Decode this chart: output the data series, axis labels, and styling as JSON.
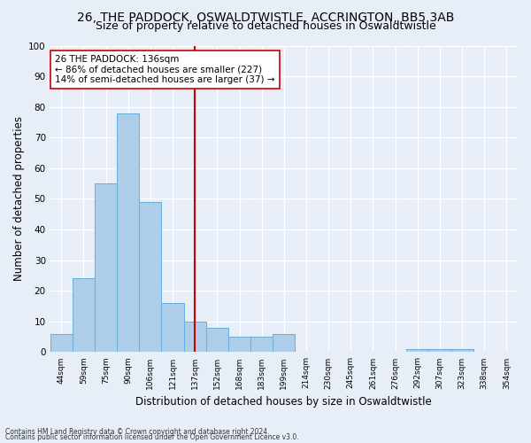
{
  "title1": "26, THE PADDOCK, OSWALDTWISTLE, ACCRINGTON, BB5 3AB",
  "title2": "Size of property relative to detached houses in Oswaldtwistle",
  "xlabel": "Distribution of detached houses by size in Oswaldtwistle",
  "ylabel": "Number of detached properties",
  "footnote1": "Contains HM Land Registry data © Crown copyright and database right 2024.",
  "footnote2": "Contains public sector information licensed under the Open Government Licence v3.0.",
  "bar_values": [
    6,
    24,
    55,
    78,
    49,
    16,
    10,
    8,
    5,
    5,
    6,
    0,
    0,
    0,
    0,
    0,
    1,
    1,
    1,
    0,
    0
  ],
  "bin_labels": [
    "44sqm",
    "59sqm",
    "75sqm",
    "90sqm",
    "106sqm",
    "121sqm",
    "137sqm",
    "152sqm",
    "168sqm",
    "183sqm",
    "199sqm",
    "214sqm",
    "230sqm",
    "245sqm",
    "261sqm",
    "276sqm",
    "292sqm",
    "307sqm",
    "323sqm",
    "338sqm",
    "354sqm"
  ],
  "bar_color": "#aecde8",
  "bar_edge_color": "#6aaed6",
  "bg_color": "#e8eef8",
  "grid_color": "#ffffff",
  "vline_x_index": 6,
  "vline_color": "#cc0000",
  "annotation_line1": "26 THE PADDOCK: 136sqm",
  "annotation_line2": "← 86% of detached houses are smaller (227)",
  "annotation_line3": "14% of semi-detached houses are larger (37) →",
  "annotation_box_color": "#ffffff",
  "annotation_box_edge": "#cc0000",
  "ylim": [
    0,
    100
  ],
  "yticks": [
    0,
    10,
    20,
    30,
    40,
    50,
    60,
    70,
    80,
    90,
    100
  ],
  "title1_fontsize": 10,
  "title2_fontsize": 9,
  "xlabel_fontsize": 8.5,
  "ylabel_fontsize": 8.5,
  "annotation_fontsize": 7.5
}
